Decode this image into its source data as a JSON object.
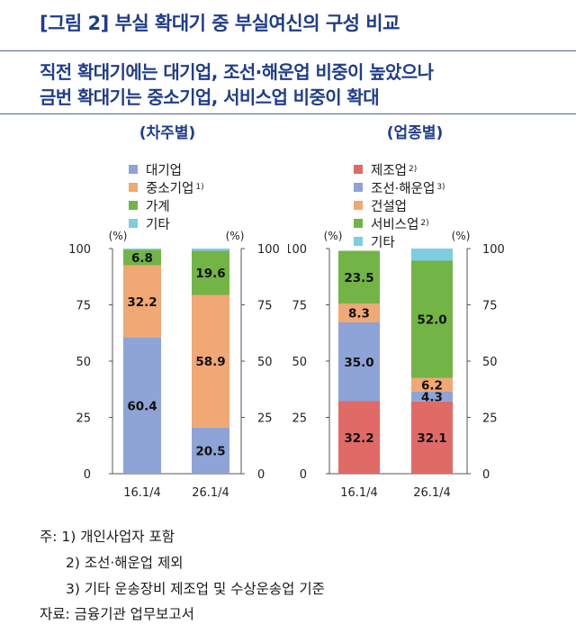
{
  "header": {
    "figure_title": "[그림 2] 부실 확대기 중 부실여신의 구성 비교",
    "subtitle_line1": "직전 확대기에는 대기업, 조선·해운업 비중이 높았으나",
    "subtitle_line2": "금번 확대기는 중소기업, 서비스업 비중이 확대"
  },
  "colors": {
    "large_firm": "#8ea3d6",
    "sme": "#f0a874",
    "household": "#72b446",
    "other": "#7fcde0",
    "manufacturing": "#e06a66",
    "shipbuilding_shipping": "#8ea3d6",
    "construction": "#f0a874",
    "services": "#72b446",
    "other_industry": "#7fcde0",
    "title_blue": "#1f3d8a"
  },
  "chart_data": [
    {
      "type": "bar",
      "stacked": true,
      "title": "(차주별)",
      "categories": [
        "16.1/4",
        "26.1/4"
      ],
      "unit_left": "(%)",
      "unit_right": "(%)",
      "ylim": [
        0,
        100
      ],
      "yticks": [
        "0",
        "25",
        "50",
        "75",
        "100"
      ],
      "legend_placement": "top-left",
      "series": [
        {
          "name": "대기업",
          "note": "",
          "color_key": "large_firm",
          "values": [
            60.4,
            20.5
          ],
          "labels": [
            "60.4",
            "20.5"
          ]
        },
        {
          "name": "중소기업",
          "note": "1)",
          "color_key": "sme",
          "values": [
            32.2,
            58.9
          ],
          "labels": [
            "32.2",
            "58.9"
          ]
        },
        {
          "name": "가계",
          "note": "",
          "color_key": "household",
          "values": [
            6.8,
            19.6
          ],
          "labels": [
            "6.8",
            "19.6"
          ]
        },
        {
          "name": "기타",
          "note": "",
          "color_key": "other",
          "values": [
            0.6,
            1.0
          ],
          "labels": [
            "",
            ""
          ]
        }
      ]
    },
    {
      "type": "bar",
      "stacked": true,
      "title": "(업종별)",
      "categories": [
        "16.1/4",
        "26.1/4"
      ],
      "unit_left": "(%)",
      "unit_right": "(%)",
      "ylim": [
        0,
        100
      ],
      "yticks": [
        "0",
        "25",
        "50",
        "75",
        "100"
      ],
      "legend_placement": "top-left",
      "series": [
        {
          "name": "제조업",
          "note": "2)",
          "color_key": "manufacturing",
          "values": [
            32.2,
            32.1
          ],
          "labels": [
            "32.2",
            "32.1"
          ]
        },
        {
          "name": "조선·해운업",
          "note": "3)",
          "color_key": "shipbuilding_shipping",
          "values": [
            35.0,
            4.3
          ],
          "labels": [
            "35.0",
            "4.3"
          ]
        },
        {
          "name": "건설업",
          "note": "",
          "color_key": "construction",
          "values": [
            8.3,
            6.2
          ],
          "labels": [
            "8.3",
            "6.2"
          ]
        },
        {
          "name": "서비스업",
          "note": "2)",
          "color_key": "services",
          "values": [
            23.5,
            52.0
          ],
          "labels": [
            "23.5",
            "52.0"
          ]
        },
        {
          "name": "기타",
          "note": "",
          "color_key": "other_industry",
          "values": [
            0.0,
            5.5
          ],
          "labels": [
            "",
            ""
          ]
        }
      ]
    }
  ],
  "notes": {
    "note1": "주: 1) 개인사업자 포함",
    "note2": "2) 조선·해운업 제외",
    "note3": "3) 기타 운송장비 제조업 및 수상운송업 기준",
    "source": "자료: 금융기관 업무보고서"
  }
}
